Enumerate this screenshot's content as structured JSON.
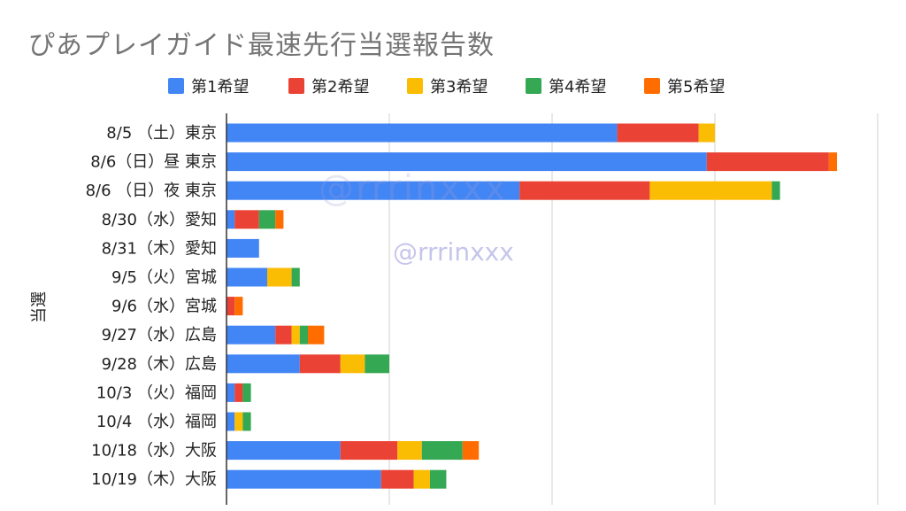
{
  "chart_data": {
    "type": "bar",
    "orientation": "horizontal",
    "stacked": true,
    "title": "ぴあプレイガイド最速先行当選報告数",
    "ylabel": "当選",
    "xlim": [
      0,
      40
    ],
    "grid": true,
    "legend_position": "top",
    "categories": [
      "8/5 （土）東京",
      "8/6（日）昼 東京",
      "8/6 （日）夜 東京",
      "8/30（水）愛知",
      "8/31（木）愛知",
      "9/5（火）宮城",
      "9/6（水）宮城",
      "9/27（水）広島",
      "9/28（木）広島",
      "10/3 （火）福岡",
      "10/4 （水）福岡",
      "10/18（水）大阪",
      "10/19（木）大阪"
    ],
    "series": [
      {
        "name": "第1希望",
        "color": "#4285F4",
        "values": [
          24,
          29.5,
          18,
          0.5,
          2,
          2.5,
          0,
          3,
          4.5,
          0.5,
          0.5,
          7,
          9.5
        ]
      },
      {
        "name": "第2希望",
        "color": "#EA4335",
        "values": [
          5,
          7.5,
          8,
          1.5,
          0,
          0,
          0.5,
          1,
          2.5,
          0.5,
          0,
          3.5,
          2
        ]
      },
      {
        "name": "第3希望",
        "color": "#FBBC04",
        "values": [
          1,
          0,
          7.5,
          0,
          0,
          1.5,
          0,
          0.5,
          1.5,
          0,
          0.5,
          1.5,
          1
        ]
      },
      {
        "name": "第4希望",
        "color": "#34A853",
        "values": [
          0,
          0,
          0.5,
          1,
          0,
          0.5,
          0,
          0.5,
          1.5,
          0.5,
          0.5,
          2.5,
          1
        ]
      },
      {
        "name": "第5希望",
        "color": "#FF6D01",
        "values": [
          0,
          0.5,
          0,
          0.5,
          0,
          0,
          0.5,
          1,
          0,
          0,
          0,
          1,
          0
        ]
      }
    ]
  },
  "watermark": "@rrrinxxx"
}
